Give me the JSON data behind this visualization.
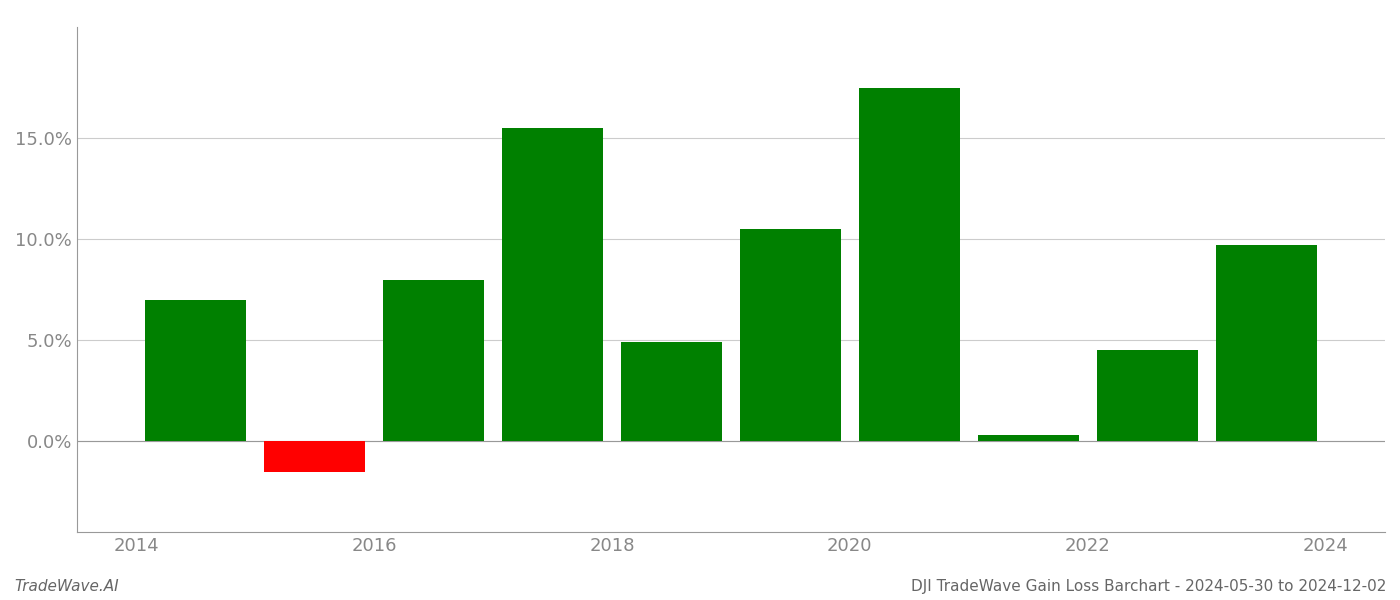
{
  "years": [
    2014.5,
    2015.5,
    2016.5,
    2017.5,
    2018.5,
    2019.5,
    2020.5,
    2021.5,
    2022.5,
    2023.5
  ],
  "values": [
    0.07,
    -0.015,
    0.08,
    0.155,
    0.049,
    0.105,
    0.175,
    0.003,
    0.045,
    0.097
  ],
  "colors": [
    "#008000",
    "#ff0000",
    "#008000",
    "#008000",
    "#008000",
    "#008000",
    "#008000",
    "#008000",
    "#008000",
    "#008000"
  ],
  "ylim": [
    -0.045,
    0.205
  ],
  "yticks": [
    0.0,
    0.05,
    0.1,
    0.15
  ],
  "xtick_labels": [
    "2014",
    "2016",
    "2018",
    "2020",
    "2022",
    "2024"
  ],
  "xtick_positions": [
    2014,
    2016,
    2018,
    2020,
    2022,
    2024
  ],
  "footer_left": "TradeWave.AI",
  "footer_right": "DJI TradeWave Gain Loss Barchart - 2024-05-30 to 2024-12-02",
  "bar_width": 0.85,
  "background_color": "#ffffff",
  "grid_color": "#cccccc",
  "axis_color": "#999999",
  "tick_color": "#888888",
  "footer_fontsize": 11,
  "tick_fontsize": 13
}
